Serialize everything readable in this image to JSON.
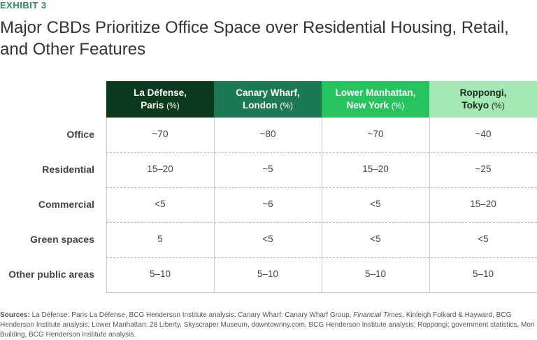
{
  "exhibit": "EXHIBIT 3",
  "title": "Major CBDs Prioritize Office Space over Residential Housing, Retail, and Other Features",
  "table": {
    "columns": [
      {
        "line1": "La Défense,",
        "line2": "Paris",
        "unit": "(%)"
      },
      {
        "line1": "Canary Wharf,",
        "line2": "London",
        "unit": "(%)"
      },
      {
        "line1": "Lower Manhattan,",
        "line2": "New York",
        "unit": "(%)"
      },
      {
        "line1": "Roppongi,",
        "line2": "Tokyo",
        "unit": "(%)"
      }
    ],
    "rows": [
      {
        "label": "Office",
        "cells": [
          "~70",
          "~80",
          "~70",
          "~40"
        ]
      },
      {
        "label": "Residential",
        "cells": [
          "15–20",
          "~5",
          "15–20",
          "~25"
        ]
      },
      {
        "label": "Commercial",
        "cells": [
          "<5",
          "~6",
          "<5",
          "15–20"
        ]
      },
      {
        "label": "Green spaces",
        "cells": [
          "5",
          "<5",
          "<5",
          "<5"
        ]
      },
      {
        "label": "Other public areas",
        "cells": [
          "5–10",
          "5–10",
          "5–10",
          "5–10"
        ]
      }
    ]
  },
  "sources": {
    "label": "Sources:",
    "parts": [
      "La Défense: Paris La Défense, BCG Henderson Institute analysis; Canary Wharf: Canary Wharf Group, ",
      "Financial Times",
      ", Kinleigh Folkard & Hayward, BCG Henderson Institute analysis; Lower Manhattan: 28 Liberty, Skyscraper Museum, downtownny.com, BCG Henderson Institute analysis; Roppongi: government statistics, Mori Building, BCG Henderson Institute analysis."
    ]
  }
}
